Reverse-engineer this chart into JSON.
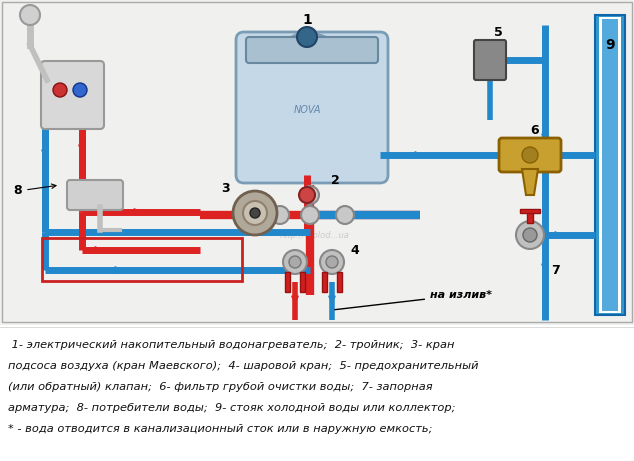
{
  "background_color": "#ffffff",
  "text_lines": [
    " 1- электрический накопительный водонагреватель;  2- тройник;  3- кран",
    "подсоса воздуха (кран Маевского);  4- шаровой кран;  5- предохранительный",
    "(или обратный) клапан;  6- фильтр грубой очистки воды;  7- запорная",
    "арматура;  8- потребители воды;  9- стояк холодной воды или коллектор;",
    "* - вода отводится в канализационный сток или в наружную емкость;"
  ],
  "text_color": "#111111",
  "hot_color": "#dd2222",
  "cold_color": "#2288cc",
  "font_size_text": 8.2,
  "font_size_label": 9
}
